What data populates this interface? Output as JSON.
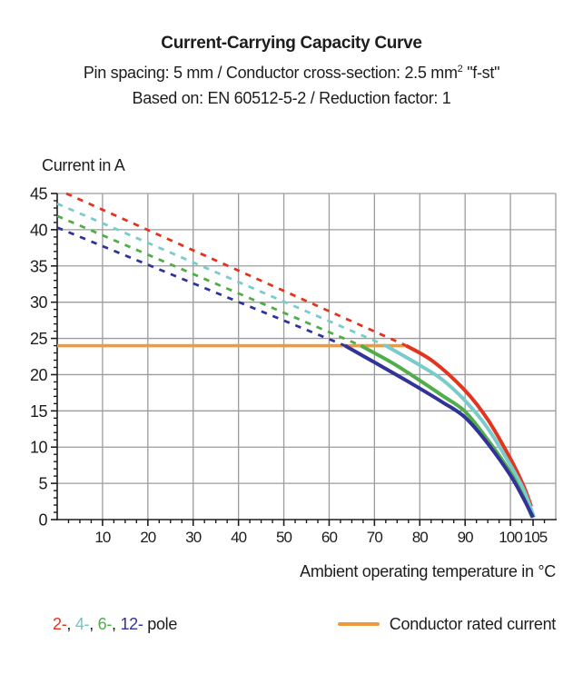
{
  "header": {
    "title": "Current-Carrying Capacity Curve",
    "subtitle1_pre": "Pin spacing: 5 mm / Conductor cross-section: 2.5 mm",
    "subtitle1_sup": "2",
    "subtitle1_post": " \"f-st\"",
    "subtitle2": "Based on: EN 60512-5-2 / Reduction factor: 1"
  },
  "legend": {
    "poles": [
      {
        "label": "2-",
        "color": "#E23520"
      },
      {
        "label": "4-",
        "color": "#6CC6C7"
      },
      {
        "label": "6-",
        "color": "#4FAE49"
      },
      {
        "label": "12-",
        "color": "#2F339B"
      }
    ],
    "poles_separator": ", ",
    "poles_suffix": " pole",
    "rated_label": "Conductor rated current",
    "rated_color": "#F09B3B"
  },
  "chart_data": {
    "type": "line",
    "title": "Current-Carrying Capacity Curve",
    "xlabel": "Ambient operating temperature in °C",
    "ylabel": "Current in A",
    "xlim": [
      0,
      110
    ],
    "ylim": [
      0,
      45
    ],
    "x_tick_labels": [
      10,
      20,
      30,
      40,
      50,
      60,
      70,
      80,
      90,
      100,
      105
    ],
    "y_tick_labels": [
      0,
      5,
      10,
      15,
      20,
      25,
      30,
      35,
      40,
      45
    ],
    "x_gridline_step": 10,
    "y_gridline_step": 5,
    "x_minor_tick_step": 2.5,
    "y_minor_tick_step": 1,
    "grid_on": true,
    "grid_color": "#9a9c9e",
    "axis_color": "#1d1d1b",
    "rated_current_A": 24,
    "max_temperature_C": 105,
    "series": [
      {
        "name": "conductor-rated-current-line",
        "legend": "Conductor rated current",
        "style": "solid",
        "color": "#F09B3B",
        "width": 3.6,
        "points": [
          [
            0,
            24
          ],
          [
            77,
            24
          ]
        ]
      },
      {
        "name": "pole-2-capacity-dashed",
        "pole": "2",
        "style": "dashed",
        "color": "#E23520",
        "width": 2.8,
        "points": [
          [
            2,
            45
          ],
          [
            77,
            24
          ]
        ]
      },
      {
        "name": "pole-4-capacity-dashed",
        "pole": "4",
        "style": "dashed",
        "color": "#79CCCB",
        "width": 2.8,
        "points": [
          [
            0,
            43.6
          ],
          [
            72.5,
            24
          ]
        ]
      },
      {
        "name": "pole-6-capacity-dashed",
        "pole": "6",
        "style": "dashed",
        "color": "#4FAE49",
        "width": 2.8,
        "points": [
          [
            0,
            41.9
          ],
          [
            67,
            24
          ]
        ]
      },
      {
        "name": "pole-12-capacity-dashed",
        "pole": "12",
        "style": "dashed",
        "color": "#31339B",
        "width": 2.8,
        "points": [
          [
            0,
            40.3
          ],
          [
            63.5,
            24
          ]
        ]
      },
      {
        "name": "pole-2-capacity-solid",
        "pole": "2",
        "style": "solid",
        "color": "#E23520",
        "width": 4,
        "points": [
          [
            77,
            24
          ],
          [
            83,
            21.8
          ],
          [
            90,
            17.8
          ],
          [
            95,
            13.8
          ],
          [
            100,
            8.4
          ],
          [
            102.8,
            4.8
          ],
          [
            104.6,
            1.8
          ]
        ]
      },
      {
        "name": "pole-4-capacity-solid",
        "pole": "4",
        "style": "solid",
        "color": "#79CCCB",
        "width": 4,
        "points": [
          [
            72.5,
            24
          ],
          [
            80,
            21.3
          ],
          [
            85,
            19.3
          ],
          [
            90,
            16.4
          ],
          [
            95,
            12.6
          ],
          [
            100,
            7.5
          ],
          [
            103,
            4
          ],
          [
            105.2,
            0.3
          ]
        ]
      },
      {
        "name": "pole-6-capacity-solid",
        "pole": "6",
        "style": "solid",
        "color": "#4FAE49",
        "width": 4,
        "points": [
          [
            67,
            24
          ],
          [
            74,
            21.6
          ],
          [
            80,
            19.2
          ],
          [
            85,
            17.1
          ],
          [
            90,
            14.9
          ],
          [
            95,
            11
          ],
          [
            100,
            6.5
          ],
          [
            102.8,
            3.2
          ],
          [
            104.8,
            0.3
          ]
        ]
      },
      {
        "name": "pole-12-capacity-solid",
        "pole": "12",
        "style": "solid",
        "color": "#31339B",
        "width": 4,
        "points": [
          [
            63.5,
            24
          ],
          [
            70,
            21.7
          ],
          [
            77,
            19.2
          ],
          [
            85,
            16.2
          ],
          [
            90,
            14.1
          ],
          [
            95,
            10.5
          ],
          [
            100,
            6.1
          ],
          [
            102.8,
            3
          ],
          [
            105,
            0.3
          ]
        ]
      }
    ]
  }
}
